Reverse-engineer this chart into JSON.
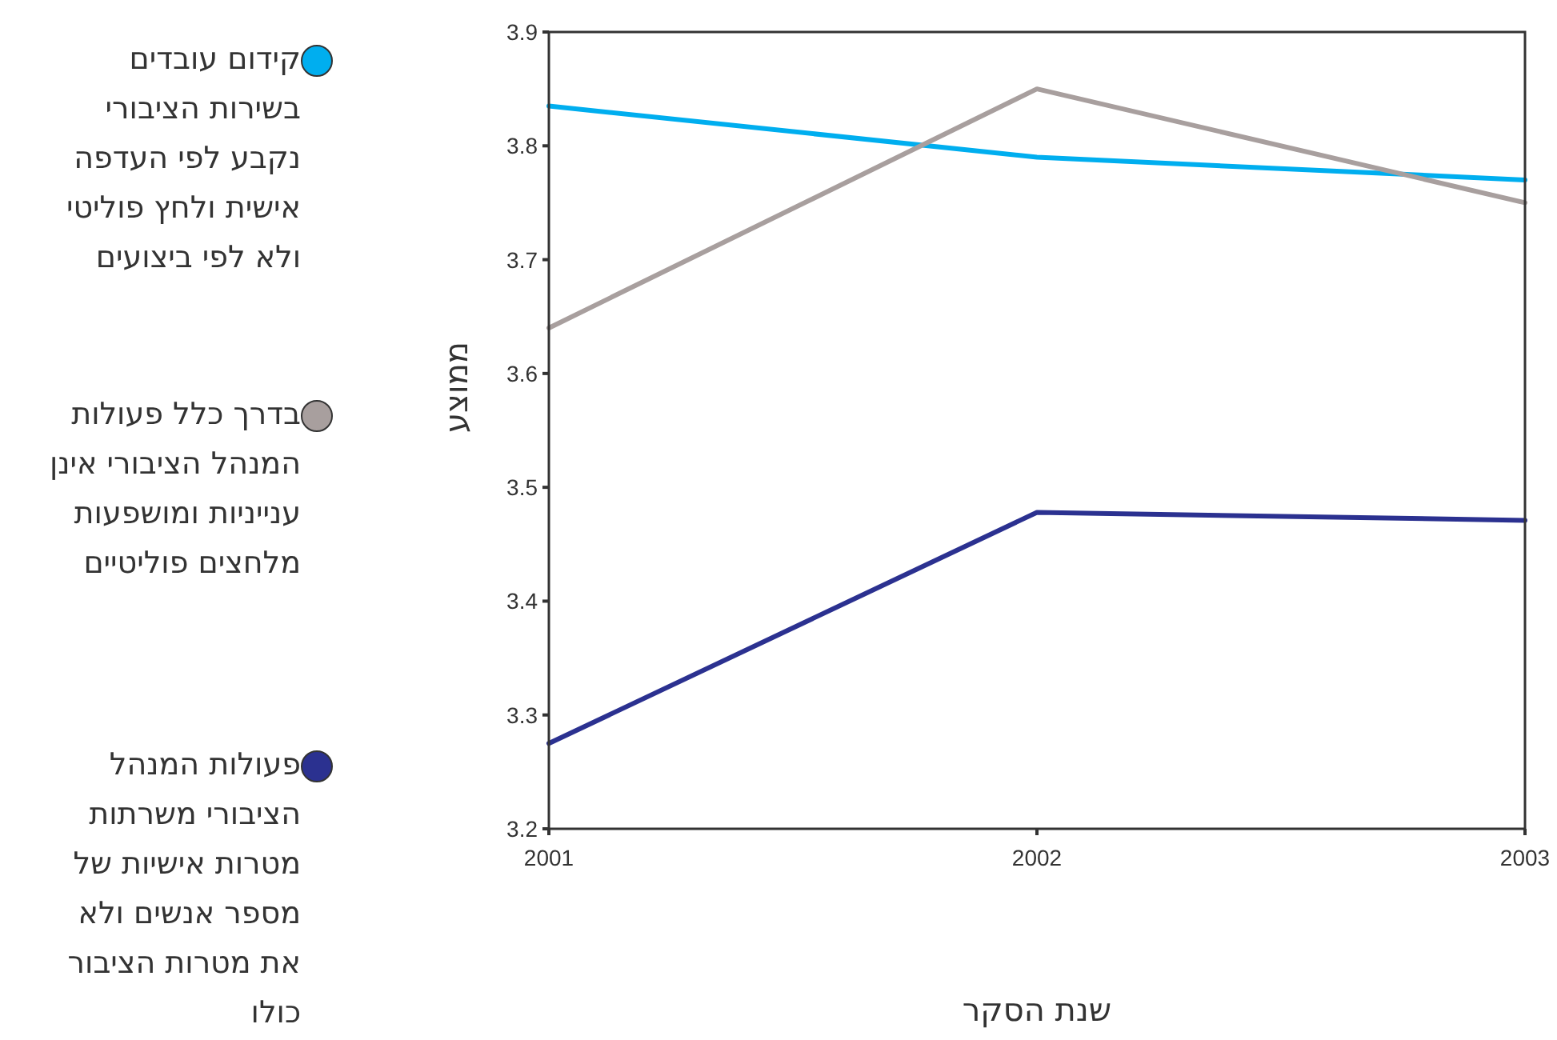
{
  "chart_data": {
    "type": "line",
    "xlabel": "שנת הסקר",
    "ylabel": "ממוצע",
    "x": [
      2001,
      2002,
      2003
    ],
    "series": [
      {
        "name": "קידום עובדים בשירות הציבורי נקבע לפי העדפה אישית ולחץ פוליטי ולא לפי ביצועים",
        "color": "#00aeef",
        "values": [
          3.835,
          3.79,
          3.77
        ]
      },
      {
        "name": "בדרך כלל פעולות המנהל הציבורי אינן ענייניות ומושפעות מלחצים פוליטיים",
        "color": "#a89f9e",
        "values": [
          3.64,
          3.85,
          3.75
        ]
      },
      {
        "name": "פעולות המנהל הציבורי משרתות מטרות אישיות של מספר אנשים ולא את מטרות הציבור כולו",
        "color": "#2b3190",
        "values": [
          3.275,
          3.478,
          3.471
        ]
      }
    ],
    "xlim": [
      2001,
      2003
    ],
    "xticks": [
      2001,
      2002,
      2003
    ],
    "ylim": [
      3.2,
      3.9
    ],
    "yticks": [
      3.2,
      3.3,
      3.4,
      3.5,
      3.6,
      3.7,
      3.8,
      3.9
    ],
    "grid": false,
    "legend": "left",
    "marker": "none",
    "line_style": "solid"
  }
}
